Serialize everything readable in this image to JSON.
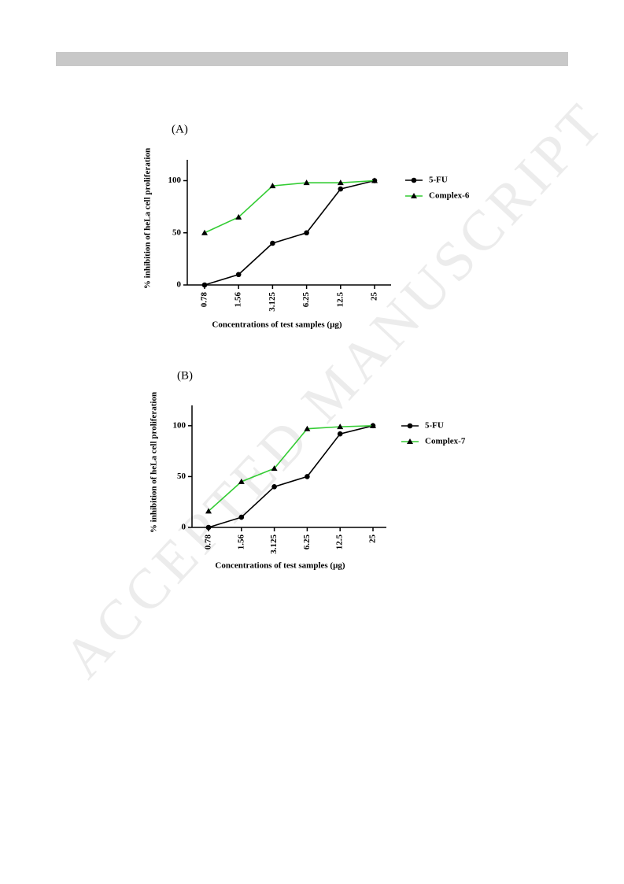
{
  "watermark": "ACCEPTED MANUSCRIPT",
  "chart_data": [
    {
      "type": "line",
      "title": "(A)",
      "y_label": "% inhibition of heLa cell proliferation",
      "x_label": "Concentrations of test samples (µg)",
      "categories": [
        "0.78",
        "1.56",
        "3.125",
        "6.25",
        "12.5",
        "25"
      ],
      "series": [
        {
          "name": "5-FU",
          "color": "#000000",
          "marker": "circle",
          "values": [
            0,
            10,
            40,
            50,
            92,
            100
          ]
        },
        {
          "name": "Complex-6",
          "color": "#33cc33",
          "marker": "triangle",
          "values": [
            50,
            65,
            95,
            98,
            98,
            100
          ]
        }
      ],
      "ylim": [
        0,
        120
      ],
      "yticks": [
        0,
        50,
        100
      ],
      "grid": false,
      "legend": "right"
    },
    {
      "type": "line",
      "title": "(B)",
      "y_label": "% inhibition of heLa cell proliferation",
      "x_label": "Concentrations of test samples (µg)",
      "categories": [
        "0.78",
        "1.56",
        "3.125",
        "6.25",
        "12.5",
        "25"
      ],
      "series": [
        {
          "name": "5-FU",
          "color": "#000000",
          "marker": "circle",
          "values": [
            0,
            10,
            40,
            50,
            92,
            100
          ]
        },
        {
          "name": "Complex-7",
          "color": "#33cc33",
          "marker": "triangle",
          "values": [
            16,
            45,
            58,
            97,
            99,
            100
          ]
        }
      ],
      "ylim": [
        0,
        120
      ],
      "yticks": [
        0,
        50,
        100
      ],
      "grid": false,
      "legend": "right"
    }
  ]
}
